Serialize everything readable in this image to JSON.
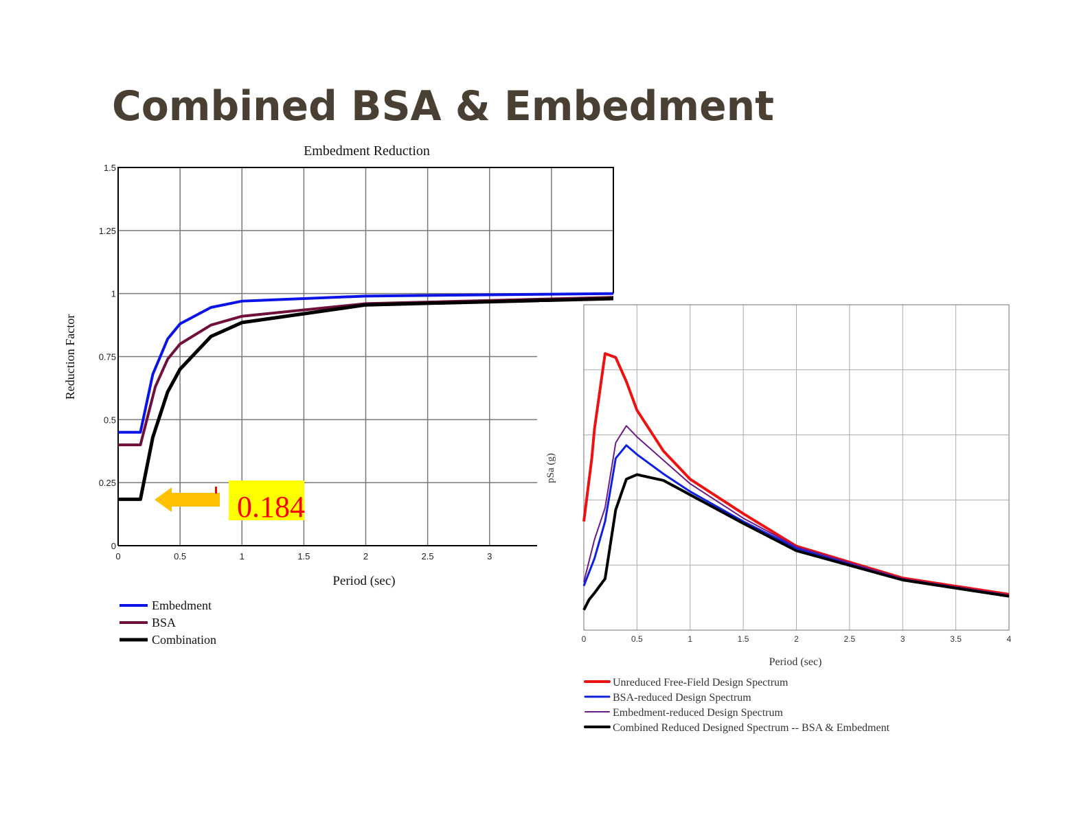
{
  "slide": {
    "title": "Combined BSA & Embedment",
    "annotation_value": "0.184",
    "colors": {
      "title": "#4a3f33",
      "annotation_bg": "#ffff00",
      "annotation_text": "#ff0000",
      "arrow": "#ffc000"
    }
  },
  "chart_data": [
    {
      "type": "line",
      "title": "Embedment Reduction",
      "xlabel": "Period (sec)",
      "ylabel": "Reduction Factor",
      "xlim": [
        0,
        4
      ],
      "ylim": [
        0,
        1.5
      ],
      "xticks": [
        "0",
        "0.5",
        "1",
        "1.5",
        "2",
        "2.5",
        "3"
      ],
      "yticks": [
        "0",
        "0.25",
        "0.5",
        "0.75",
        "1",
        "1.25",
        "1.5"
      ],
      "grid": true,
      "legend_position": "bottom-left",
      "series": [
        {
          "name": "Embedment",
          "color": "#0a14e6",
          "x": [
            0,
            0.18,
            0.28,
            0.4,
            0.5,
            0.75,
            1,
            2,
            4
          ],
          "y": [
            0.45,
            0.45,
            0.68,
            0.82,
            0.88,
            0.945,
            0.97,
            0.99,
            1.0
          ]
        },
        {
          "name": "BSA",
          "color": "#6e0f3c",
          "x": [
            0,
            0.18,
            0.3,
            0.4,
            0.5,
            0.75,
            1,
            2,
            4
          ],
          "y": [
            0.4,
            0.4,
            0.63,
            0.74,
            0.8,
            0.875,
            0.91,
            0.96,
            0.985
          ]
        },
        {
          "name": "Combination",
          "color": "#000000",
          "x": [
            0,
            0.18,
            0.28,
            0.4,
            0.5,
            0.75,
            1,
            2,
            4
          ],
          "y": [
            0.184,
            0.184,
            0.43,
            0.61,
            0.7,
            0.83,
            0.885,
            0.955,
            0.98
          ]
        }
      ]
    },
    {
      "type": "line",
      "title": "",
      "xlabel": "Period (sec)",
      "ylabel": "pSa (g)",
      "xlim": [
        0,
        4
      ],
      "ylim": [
        0,
        5
      ],
      "y_units_note": "no y tick labels shown; values in gridline units",
      "xticks": [
        "0",
        "0.5",
        "1",
        "1.5",
        "2",
        "2.5",
        "3",
        "3.5",
        "4"
      ],
      "grid": true,
      "legend_position": "bottom",
      "series": [
        {
          "name": "Unreduced Free-Field Design Spectrum",
          "color": "#ee1111",
          "width": 4,
          "x": [
            0,
            0.075,
            0.1,
            0.2,
            0.3,
            0.4,
            0.5,
            0.75,
            1,
            1.5,
            2,
            3,
            4
          ],
          "y": [
            1.67,
            2.64,
            3.09,
            4.25,
            4.19,
            3.82,
            3.38,
            2.75,
            2.32,
            1.79,
            1.29,
            0.8,
            0.55
          ]
        },
        {
          "name": "BSA-reduced Design Spectrum",
          "color": "#1020e0",
          "width": 3,
          "x": [
            0,
            0.1,
            0.2,
            0.3,
            0.4,
            0.5,
            0.75,
            1,
            1.5,
            2,
            3,
            4
          ],
          "y": [
            0.68,
            1.1,
            1.67,
            2.64,
            2.84,
            2.7,
            2.4,
            2.13,
            1.67,
            1.26,
            0.78,
            0.53
          ]
        },
        {
          "name": "Embedment-reduced Design Spectrum",
          "color": "#6a1a8a",
          "width": 2,
          "x": [
            0,
            0.1,
            0.2,
            0.3,
            0.4,
            0.5,
            1,
            1.5,
            2,
            3,
            4
          ],
          "y": [
            0.74,
            1.39,
            1.88,
            2.88,
            3.14,
            2.97,
            2.25,
            1.72,
            1.28,
            0.79,
            0.54
          ]
        },
        {
          "name": "Combined Reduced Designed Spectrum -- BSA & Embedment",
          "color": "#000000",
          "width": 4,
          "x": [
            0,
            0.05,
            0.1,
            0.2,
            0.3,
            0.4,
            0.5,
            0.75,
            1,
            1.5,
            2,
            3,
            4
          ],
          "y": [
            0.31,
            0.47,
            0.57,
            0.79,
            1.85,
            2.32,
            2.39,
            2.3,
            2.08,
            1.64,
            1.22,
            0.77,
            0.52
          ]
        }
      ]
    }
  ]
}
